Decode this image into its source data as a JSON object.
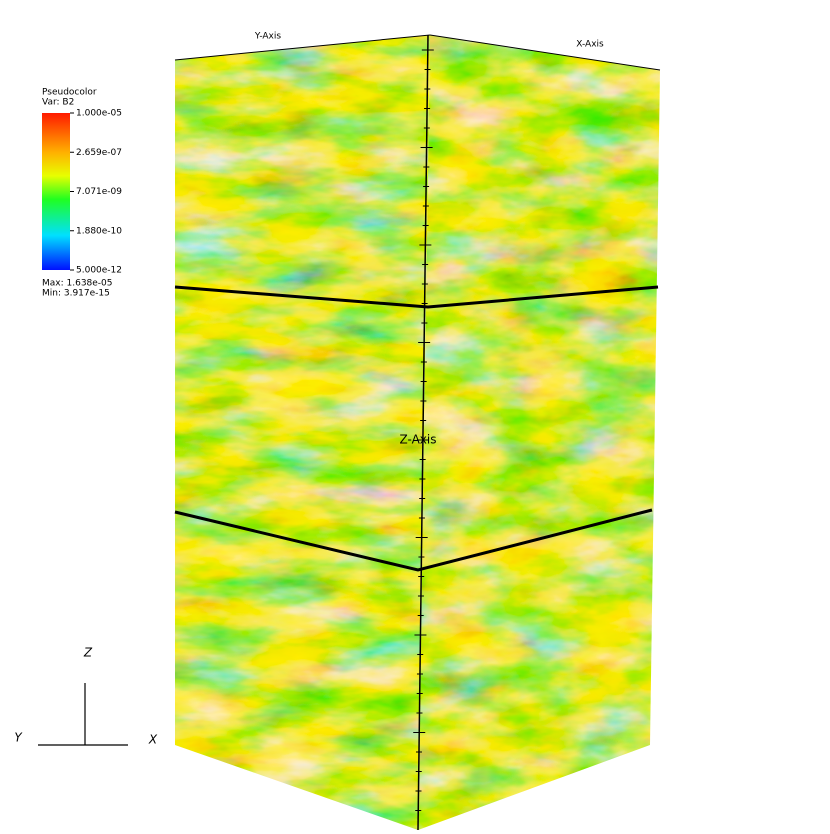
{
  "legend": {
    "title": "Pseudocolor",
    "variable": "Var: B2",
    "labels": [
      "1.000e-05",
      "2.659e-07",
      "7.071e-09",
      "1.880e-10",
      "5.000e-12"
    ],
    "max": "Max: 1.638e-05",
    "min": "Min: 3.917e-15"
  },
  "axes": {
    "x": "X-Axis",
    "y": "Y-Axis",
    "z": "Z-Axis"
  },
  "triad": {
    "x": "X",
    "y": "Y",
    "z": "Z"
  }
}
